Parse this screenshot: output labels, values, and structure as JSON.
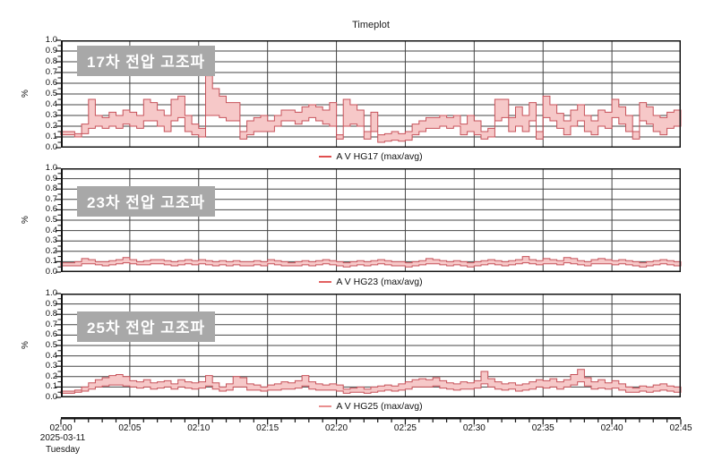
{
  "title": "Timeplot",
  "colors": {
    "band_fill": "#f6c8c8",
    "band_stroke": "#c7525a",
    "grid": "#454545",
    "axis": "#141414",
    "label_box_bg": "#a8a8a8",
    "label_box_text": "#ffffff"
  },
  "y_axis": {
    "label": "%",
    "tick_labels": [
      "1.0",
      "0.9",
      "0.8",
      "0.7",
      "0.6",
      "0.5",
      "0.4",
      "0.3",
      "0.2",
      "0.1",
      "0.0"
    ],
    "min": 0,
    "max": 1
  },
  "x_axis": {
    "tick_labels": [
      "02:00",
      "02:05",
      "02:10",
      "02:15",
      "02:20",
      "02:25",
      "02:30",
      "02:35",
      "02:40",
      "02:45"
    ],
    "minor_tick_minutes": 1,
    "major_tick_minutes": 5,
    "total_minutes": 45,
    "date": "2025-03-11",
    "weekday": "Tuesday"
  },
  "chart_data": [
    {
      "type": "area",
      "subtype": "step-band-max-avg",
      "label": "17차 전압 고조파",
      "legend": "A V HG17 (max/avg)",
      "legend_color": "#e04f4f",
      "x_start": "02:00",
      "x_end": "02:45",
      "step_seconds": 30,
      "ylim": [
        0,
        1
      ],
      "grid": true,
      "legend_position": "bottom-center",
      "series": [
        {
          "name": "max",
          "values": [
            0.15,
            0.15,
            0.13,
            0.22,
            0.45,
            0.3,
            0.28,
            0.33,
            0.3,
            0.35,
            0.33,
            0.3,
            0.45,
            0.42,
            0.35,
            0.3,
            0.45,
            0.48,
            0.3,
            0.22,
            0.18,
            0.67,
            0.55,
            0.48,
            0.42,
            0.42,
            0.15,
            0.25,
            0.28,
            0.3,
            0.25,
            0.3,
            0.35,
            0.35,
            0.33,
            0.38,
            0.4,
            0.38,
            0.35,
            0.42,
            0.12,
            0.45,
            0.4,
            0.35,
            0.15,
            0.33,
            0.12,
            0.13,
            0.15,
            0.13,
            0.15,
            0.22,
            0.25,
            0.28,
            0.28,
            0.3,
            0.28,
            0.3,
            0.22,
            0.3,
            0.25,
            0.15,
            0.18,
            0.45,
            0.45,
            0.28,
            0.38,
            0.3,
            0.42,
            0.15,
            0.48,
            0.4,
            0.32,
            0.25,
            0.35,
            0.4,
            0.3,
            0.25,
            0.35,
            0.33,
            0.45,
            0.38,
            0.3,
            0.15,
            0.42,
            0.38,
            0.3,
            0.28,
            0.33,
            0.35
          ]
        },
        {
          "name": "avg",
          "values": [
            0.12,
            0.12,
            0.1,
            0.13,
            0.18,
            0.2,
            0.18,
            0.2,
            0.18,
            0.22,
            0.2,
            0.18,
            0.25,
            0.25,
            0.2,
            0.15,
            0.25,
            0.28,
            0.15,
            0.12,
            0.1,
            0.3,
            0.3,
            0.28,
            0.25,
            0.25,
            0.08,
            0.12,
            0.15,
            0.15,
            0.15,
            0.2,
            0.25,
            0.25,
            0.22,
            0.25,
            0.28,
            0.25,
            0.22,
            0.2,
            0.08,
            0.2,
            0.22,
            0.2,
            0.08,
            0.15,
            0.05,
            0.06,
            0.07,
            0.06,
            0.07,
            0.12,
            0.15,
            0.18,
            0.18,
            0.2,
            0.18,
            0.2,
            0.12,
            0.15,
            0.12,
            0.08,
            0.1,
            0.25,
            0.28,
            0.15,
            0.2,
            0.15,
            0.25,
            0.08,
            0.28,
            0.25,
            0.18,
            0.12,
            0.2,
            0.25,
            0.15,
            0.12,
            0.2,
            0.18,
            0.28,
            0.22,
            0.15,
            0.08,
            0.25,
            0.22,
            0.15,
            0.12,
            0.18,
            0.2
          ]
        }
      ]
    },
    {
      "type": "area",
      "subtype": "step-band-max-avg",
      "label": "23차 전압 고조파",
      "legend": "A V HG23 (max/avg)",
      "legend_color": "#e26060",
      "x_start": "02:00",
      "x_end": "02:45",
      "step_seconds": 30,
      "ylim": [
        0,
        1
      ],
      "grid": true,
      "legend_position": "bottom-center",
      "series": [
        {
          "name": "max",
          "values": [
            0.09,
            0.09,
            0.1,
            0.13,
            0.12,
            0.1,
            0.1,
            0.11,
            0.12,
            0.14,
            0.12,
            0.1,
            0.11,
            0.12,
            0.12,
            0.11,
            0.1,
            0.11,
            0.12,
            0.11,
            0.12,
            0.11,
            0.1,
            0.11,
            0.1,
            0.11,
            0.1,
            0.1,
            0.11,
            0.1,
            0.12,
            0.11,
            0.1,
            0.09,
            0.1,
            0.11,
            0.1,
            0.11,
            0.12,
            0.11,
            0.1,
            0.09,
            0.1,
            0.11,
            0.1,
            0.11,
            0.12,
            0.11,
            0.1,
            0.1,
            0.09,
            0.1,
            0.11,
            0.13,
            0.12,
            0.11,
            0.1,
            0.11,
            0.1,
            0.09,
            0.1,
            0.11,
            0.12,
            0.11,
            0.1,
            0.11,
            0.12,
            0.15,
            0.12,
            0.11,
            0.13,
            0.12,
            0.11,
            0.14,
            0.13,
            0.11,
            0.1,
            0.12,
            0.13,
            0.12,
            0.11,
            0.12,
            0.11,
            0.1,
            0.09,
            0.1,
            0.11,
            0.12,
            0.11,
            0.1
          ]
        },
        {
          "name": "avg",
          "values": [
            0.06,
            0.06,
            0.06,
            0.08,
            0.08,
            0.07,
            0.06,
            0.07,
            0.08,
            0.09,
            0.08,
            0.07,
            0.07,
            0.08,
            0.08,
            0.07,
            0.06,
            0.07,
            0.08,
            0.07,
            0.08,
            0.07,
            0.06,
            0.07,
            0.06,
            0.07,
            0.06,
            0.06,
            0.07,
            0.06,
            0.08,
            0.07,
            0.06,
            0.06,
            0.06,
            0.07,
            0.06,
            0.07,
            0.08,
            0.07,
            0.06,
            0.05,
            0.06,
            0.07,
            0.06,
            0.07,
            0.08,
            0.07,
            0.06,
            0.06,
            0.05,
            0.06,
            0.07,
            0.08,
            0.08,
            0.07,
            0.06,
            0.07,
            0.06,
            0.05,
            0.06,
            0.07,
            0.08,
            0.07,
            0.06,
            0.07,
            0.08,
            0.09,
            0.08,
            0.07,
            0.08,
            0.08,
            0.07,
            0.09,
            0.08,
            0.07,
            0.06,
            0.08,
            0.08,
            0.08,
            0.07,
            0.08,
            0.07,
            0.06,
            0.05,
            0.06,
            0.07,
            0.08,
            0.07,
            0.06
          ]
        }
      ]
    },
    {
      "type": "area",
      "subtype": "step-band-max-avg",
      "label": "25차 전압 고조파",
      "legend": "A V HG25 (max/avg)",
      "legend_color": "#e98f8f",
      "x_start": "02:00",
      "x_end": "02:45",
      "step_seconds": 30,
      "ylim": [
        0,
        1
      ],
      "grid": true,
      "legend_position": "bottom-center",
      "series": [
        {
          "name": "max",
          "values": [
            0.06,
            0.06,
            0.07,
            0.1,
            0.14,
            0.17,
            0.19,
            0.21,
            0.22,
            0.2,
            0.16,
            0.15,
            0.17,
            0.14,
            0.15,
            0.16,
            0.13,
            0.17,
            0.15,
            0.14,
            0.15,
            0.21,
            0.14,
            0.1,
            0.13,
            0.2,
            0.19,
            0.13,
            0.12,
            0.1,
            0.12,
            0.13,
            0.15,
            0.14,
            0.16,
            0.21,
            0.15,
            0.13,
            0.12,
            0.13,
            0.12,
            0.08,
            0.09,
            0.1,
            0.08,
            0.1,
            0.11,
            0.12,
            0.11,
            0.13,
            0.15,
            0.17,
            0.18,
            0.17,
            0.19,
            0.16,
            0.14,
            0.13,
            0.15,
            0.14,
            0.16,
            0.25,
            0.18,
            0.15,
            0.13,
            0.14,
            0.12,
            0.13,
            0.15,
            0.17,
            0.16,
            0.18,
            0.15,
            0.17,
            0.22,
            0.27,
            0.19,
            0.15,
            0.17,
            0.14,
            0.16,
            0.13,
            0.1,
            0.09,
            0.11,
            0.1,
            0.12,
            0.13,
            0.11,
            0.1
          ]
        },
        {
          "name": "avg",
          "values": [
            0.04,
            0.04,
            0.05,
            0.06,
            0.08,
            0.1,
            0.11,
            0.12,
            0.12,
            0.11,
            0.1,
            0.09,
            0.1,
            0.08,
            0.09,
            0.1,
            0.08,
            0.1,
            0.09,
            0.08,
            0.09,
            0.11,
            0.08,
            0.06,
            0.07,
            0.1,
            0.1,
            0.07,
            0.07,
            0.06,
            0.07,
            0.07,
            0.08,
            0.08,
            0.09,
            0.11,
            0.08,
            0.07,
            0.07,
            0.07,
            0.06,
            0.04,
            0.05,
            0.05,
            0.04,
            0.05,
            0.06,
            0.07,
            0.06,
            0.07,
            0.08,
            0.1,
            0.1,
            0.1,
            0.11,
            0.09,
            0.08,
            0.07,
            0.08,
            0.08,
            0.09,
            0.13,
            0.1,
            0.08,
            0.07,
            0.08,
            0.06,
            0.07,
            0.08,
            0.1,
            0.09,
            0.1,
            0.08,
            0.1,
            0.12,
            0.15,
            0.11,
            0.08,
            0.09,
            0.08,
            0.09,
            0.07,
            0.05,
            0.05,
            0.06,
            0.05,
            0.06,
            0.07,
            0.06,
            0.05
          ]
        }
      ]
    }
  ]
}
